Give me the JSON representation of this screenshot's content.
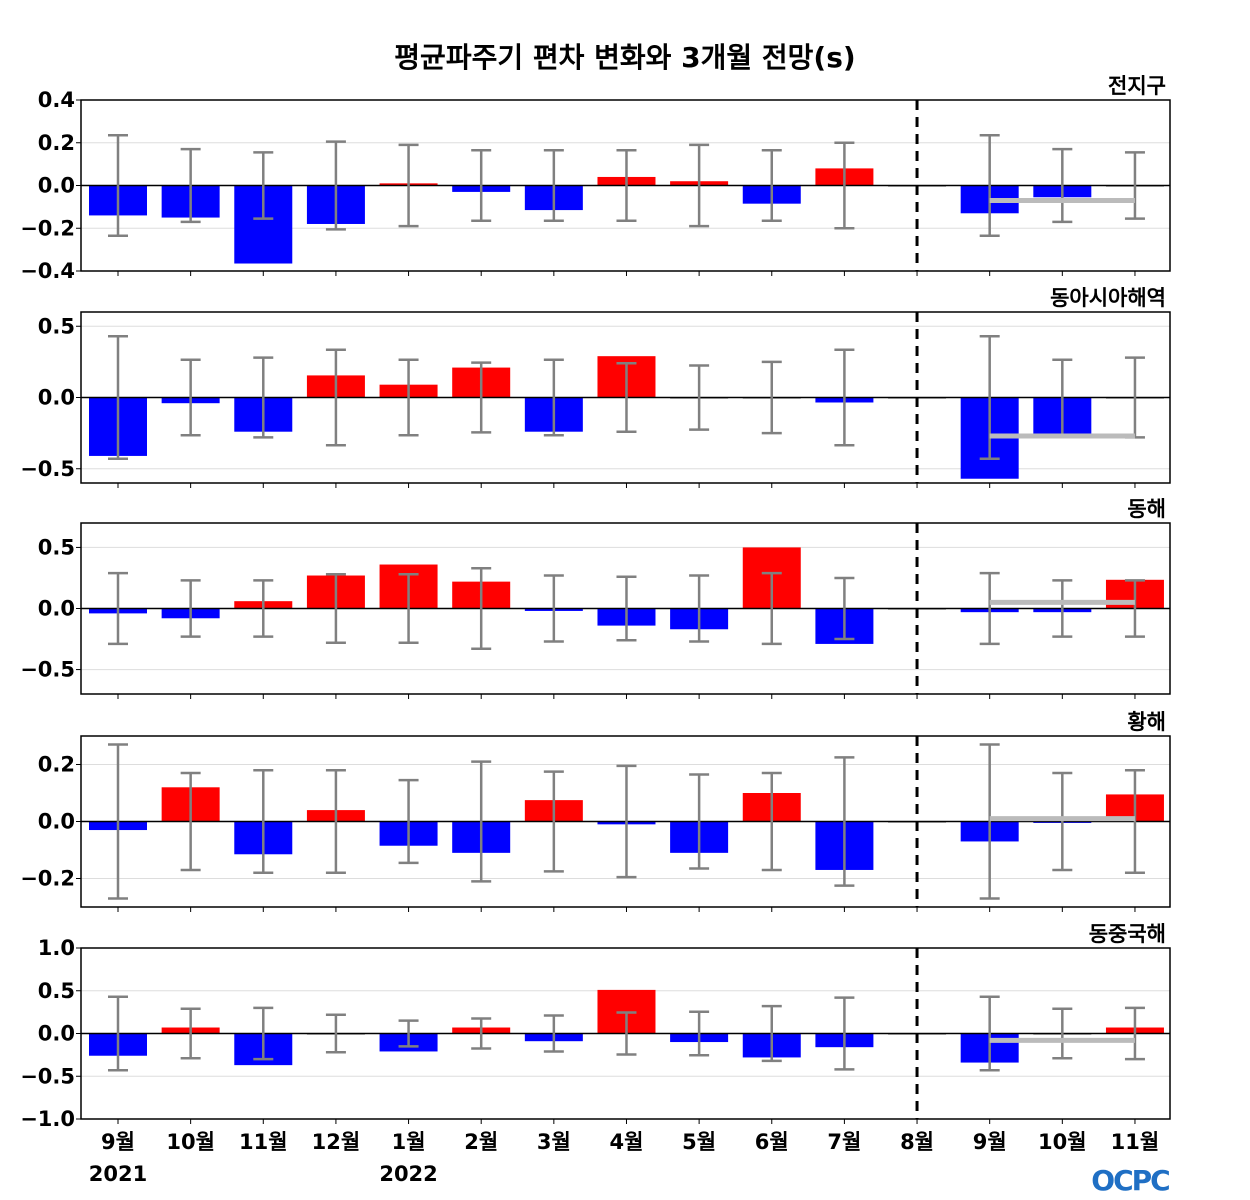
{
  "chart_data": {
    "type": "bar",
    "title": "평균파주기 편차 변화와 3개월 전망(s)",
    "categories": [
      "9월",
      "10월",
      "11월",
      "12월",
      "1월",
      "2월",
      "3월",
      "4월",
      "5월",
      "6월",
      "7월",
      "8월",
      "9월",
      "10월",
      "11월"
    ],
    "year_labels": [
      {
        "category_index": 0,
        "label": "2021"
      },
      {
        "category_index": 4,
        "label": "2022"
      }
    ],
    "forecast_divider_at": "8월",
    "colors": {
      "positive": "#ff0000",
      "negative": "#0000ff",
      "error_bar": "#808080",
      "forecast_mean": "#bbbbbb"
    },
    "panels": [
      {
        "region": "전지구",
        "ylim": [
          -0.4,
          0.4
        ],
        "yticks": [
          0.4,
          0.2,
          0.0,
          -0.2,
          -0.4
        ],
        "ytick_labels": [
          "0.4",
          "0.2",
          "0.0",
          "−0.2",
          "−0.4"
        ],
        "values": [
          -0.14,
          -0.15,
          -0.365,
          -0.18,
          0.01,
          -0.03,
          -0.115,
          0.04,
          0.02,
          -0.085,
          0.08,
          0.0,
          -0.13,
          -0.055,
          0.0
        ],
        "error": [
          0.235,
          0.17,
          0.155,
          0.205,
          0.19,
          0.165,
          0.165,
          0.165,
          0.19,
          0.165,
          0.2,
          0,
          0.235,
          0.17,
          0.155
        ],
        "forecast_mean": -0.07
      },
      {
        "region": "동아시아해역",
        "ylim": [
          -0.6,
          0.6
        ],
        "yticks": [
          0.5,
          0.0,
          -0.5
        ],
        "ytick_labels": [
          "0.5",
          "0.0",
          "−0.5"
        ],
        "values": [
          -0.41,
          -0.04,
          -0.24,
          0.155,
          0.09,
          0.21,
          -0.24,
          0.29,
          0.0,
          0.0,
          -0.035,
          0.0,
          -0.57,
          -0.265,
          0.0
        ],
        "error": [
          0.43,
          0.265,
          0.28,
          0.335,
          0.265,
          0.245,
          0.265,
          0.24,
          0.225,
          0.25,
          0.335,
          0,
          0.43,
          0.265,
          0.28
        ],
        "forecast_mean": -0.27
      },
      {
        "region": "동해",
        "ylim": [
          -0.7,
          0.7
        ],
        "yticks": [
          0.5,
          0.0,
          -0.5
        ],
        "ytick_labels": [
          "0.5",
          "0.0",
          "−0.5"
        ],
        "values": [
          -0.04,
          -0.08,
          0.06,
          0.27,
          0.36,
          0.22,
          -0.02,
          -0.14,
          -0.17,
          0.5,
          -0.29,
          0.0,
          -0.03,
          -0.03,
          0.235
        ],
        "error": [
          0.29,
          0.23,
          0.23,
          0.28,
          0.28,
          0.33,
          0.27,
          0.26,
          0.27,
          0.29,
          0.25,
          0,
          0.29,
          0.23,
          0.23
        ],
        "forecast_mean": 0.05
      },
      {
        "region": "황해",
        "ylim": [
          -0.3,
          0.3
        ],
        "yticks": [
          0.2,
          0.0,
          -0.2
        ],
        "ytick_labels": [
          "0.2",
          "0.0",
          "−0.2"
        ],
        "values": [
          -0.03,
          0.12,
          -0.115,
          0.04,
          -0.085,
          -0.11,
          0.075,
          -0.01,
          -0.11,
          0.1,
          -0.17,
          0.0,
          -0.07,
          -0.005,
          0.095
        ],
        "error": [
          0.27,
          0.17,
          0.18,
          0.18,
          0.145,
          0.21,
          0.175,
          0.195,
          0.165,
          0.17,
          0.225,
          0,
          0.27,
          0.17,
          0.18
        ],
        "forecast_mean": 0.01
      },
      {
        "region": "동중국해",
        "ylim": [
          -1.0,
          1.0
        ],
        "yticks": [
          1.0,
          0.5,
          0.0,
          -0.5,
          -1.0
        ],
        "ytick_labels": [
          "1.0",
          "0.5",
          "0.0",
          "−0.5",
          "−1.0"
        ],
        "values": [
          -0.26,
          0.07,
          -0.37,
          0.0,
          -0.21,
          0.07,
          -0.09,
          0.51,
          -0.1,
          -0.28,
          -0.16,
          0.0,
          -0.34,
          0.0,
          0.07
        ],
        "error": [
          0.43,
          0.29,
          0.3,
          0.22,
          0.15,
          0.175,
          0.21,
          0.245,
          0.255,
          0.32,
          0.42,
          0,
          0.43,
          0.29,
          0.3
        ],
        "forecast_mean": -0.08
      }
    ]
  },
  "logo": {
    "text": "OCPC",
    "color": "#1f6fc4"
  }
}
